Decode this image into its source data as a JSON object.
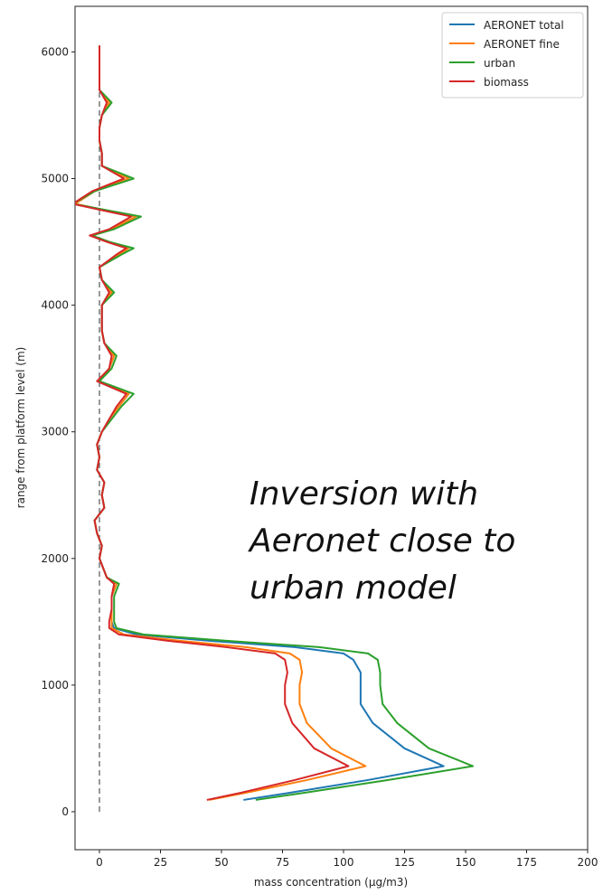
{
  "chart_data": {
    "type": "line",
    "xlabel": "mass concentration (μg/m3)",
    "ylabel": "range from platform level (m)",
    "annotation": [
      "Inversion with",
      "Aeronet close to",
      "urban model"
    ],
    "xlim": [
      -10,
      200
    ],
    "xticks": [
      0,
      25,
      50,
      75,
      100,
      125,
      150,
      175,
      200
    ],
    "ylim": [
      -300,
      6360
    ],
    "yticks": [
      0,
      1000,
      2000,
      3000,
      4000,
      5000,
      6000
    ],
    "legend": "upper right",
    "reference_line": {
      "x": 0,
      "y": [
        0,
        5700
      ],
      "color": "#555555",
      "style": "dashed"
    },
    "y": [
      93,
      150,
      250,
      360,
      500,
      700,
      850,
      1000,
      1100,
      1200,
      1250,
      1300,
      1350,
      1400,
      1450,
      1500,
      1600,
      1700,
      1800,
      1850,
      1900,
      2000,
      2100,
      2200,
      2300,
      2400,
      2500,
      2600,
      2700,
      2800,
      2900,
      3000,
      3100,
      3200,
      3300,
      3400,
      3500,
      3600,
      3700,
      3800,
      3900,
      4000,
      4100,
      4200,
      4300,
      4400,
      4450,
      4500,
      4550,
      4600,
      4700,
      4800,
      4900,
      5000,
      5100,
      5200,
      5300,
      5400,
      5500,
      5600,
      5700,
      5800,
      6000,
      6050
    ],
    "series": [
      {
        "name": "AERONET total",
        "color": "#1f77b4",
        "values": [
          59,
          78,
          110,
          141,
          125,
          112,
          107,
          107,
          107,
          104,
          100,
          80,
          45,
          15,
          6,
          5,
          5,
          5,
          7,
          3,
          2,
          0,
          1,
          -1,
          -2,
          2,
          1,
          2,
          -1,
          0,
          -1,
          1,
          4,
          8,
          12,
          0,
          4,
          6,
          2,
          1,
          1,
          1,
          5,
          1,
          0,
          8,
          12,
          4,
          -3,
          5,
          15,
          -10,
          -2,
          12,
          1,
          1,
          0,
          0,
          1,
          4,
          0,
          0,
          0,
          0
        ]
      },
      {
        "name": "AERONET fine",
        "color": "#ff7f0e",
        "values": [
          45,
          60,
          85,
          109,
          95,
          85,
          82,
          82,
          83,
          82,
          78,
          60,
          33,
          10,
          5,
          5,
          5,
          5,
          7,
          3,
          2,
          0,
          1,
          -1,
          -2,
          2,
          1,
          2,
          -1,
          0,
          -1,
          1,
          4,
          8,
          12,
          0,
          4,
          6,
          2,
          1,
          1,
          1,
          5,
          1,
          0,
          8,
          12,
          4,
          -3,
          5,
          15,
          -10,
          -2,
          12,
          1,
          1,
          0,
          0,
          1,
          4,
          0,
          0,
          0,
          0
        ]
      },
      {
        "name": "urban",
        "color": "#2ca02c",
        "values": [
          64,
          84,
          118,
          153,
          135,
          122,
          116,
          115,
          115,
          114,
          110,
          90,
          52,
          18,
          7,
          6,
          6,
          6,
          8,
          3,
          2,
          0,
          1,
          -1,
          -2,
          2,
          1,
          2,
          -1,
          0,
          -1,
          1,
          5,
          9,
          14,
          0,
          5,
          7,
          2,
          1,
          1,
          1,
          6,
          1,
          0,
          9,
          14,
          4,
          -3,
          6,
          17,
          -11,
          -2,
          14,
          1,
          1,
          0,
          0,
          1,
          5,
          0,
          0,
          0,
          0
        ]
      },
      {
        "name": "biomass",
        "color": "#d62728",
        "values": [
          44,
          58,
          80,
          102,
          88,
          79,
          76,
          76,
          77,
          76,
          72,
          52,
          28,
          8,
          4,
          4,
          5,
          5,
          6,
          3,
          2,
          0,
          1,
          -1,
          -2,
          2,
          1,
          2,
          -1,
          0,
          -1,
          1,
          4,
          7,
          11,
          -1,
          4,
          5,
          2,
          1,
          1,
          1,
          4,
          1,
          0,
          7,
          11,
          3,
          -4,
          4,
          13,
          -11,
          -3,
          10,
          1,
          1,
          0,
          0,
          1,
          3,
          0,
          0,
          0,
          0
        ]
      }
    ]
  }
}
